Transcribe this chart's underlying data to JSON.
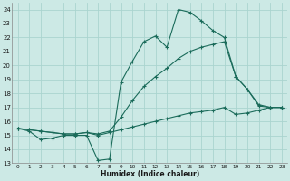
{
  "xlabel": "Humidex (Indice chaleur)",
  "background_color": "#cce9e5",
  "grid_color": "#aad4cf",
  "line_color": "#1a6b5a",
  "xlim": [
    -0.5,
    23.5
  ],
  "ylim": [
    13,
    24.5
  ],
  "xticks": [
    0,
    1,
    2,
    3,
    4,
    5,
    6,
    7,
    8,
    9,
    10,
    11,
    12,
    13,
    14,
    15,
    16,
    17,
    18,
    19,
    20,
    21,
    22,
    23
  ],
  "yticks": [
    13,
    14,
    15,
    16,
    17,
    18,
    19,
    20,
    21,
    22,
    23,
    24
  ],
  "line1_x": [
    0,
    1,
    2,
    3,
    4,
    5,
    6,
    7,
    8,
    9,
    10,
    11,
    12,
    13,
    14,
    15,
    16,
    17,
    18,
    19,
    20,
    21,
    22,
    23
  ],
  "line1_y": [
    15.5,
    15.3,
    14.7,
    14.8,
    15.0,
    15.0,
    15.0,
    13.2,
    13.3,
    18.8,
    20.3,
    21.7,
    22.1,
    21.3,
    24.0,
    23.8,
    23.2,
    22.5,
    22.0,
    19.2,
    18.3,
    17.1,
    17.0,
    17.0
  ],
  "line2_x": [
    0,
    1,
    2,
    3,
    4,
    5,
    6,
    7,
    8,
    9,
    10,
    11,
    12,
    13,
    14,
    15,
    16,
    17,
    18,
    19,
    20,
    21,
    22,
    23
  ],
  "line2_y": [
    15.5,
    15.4,
    15.3,
    15.2,
    15.1,
    15.1,
    15.2,
    15.1,
    15.3,
    16.3,
    17.5,
    18.5,
    19.2,
    19.8,
    20.5,
    21.0,
    21.3,
    21.5,
    21.7,
    19.2,
    18.3,
    17.2,
    17.0,
    17.0
  ],
  "line3_x": [
    0,
    1,
    2,
    3,
    4,
    5,
    6,
    7,
    8,
    9,
    10,
    11,
    12,
    13,
    14,
    15,
    16,
    17,
    18,
    19,
    20,
    21,
    22,
    23
  ],
  "line3_y": [
    15.5,
    15.4,
    15.3,
    15.2,
    15.1,
    15.1,
    15.2,
    15.0,
    15.2,
    15.4,
    15.6,
    15.8,
    16.0,
    16.2,
    16.4,
    16.6,
    16.7,
    16.8,
    17.0,
    16.5,
    16.6,
    16.8,
    17.0,
    17.0
  ],
  "marker": "+"
}
